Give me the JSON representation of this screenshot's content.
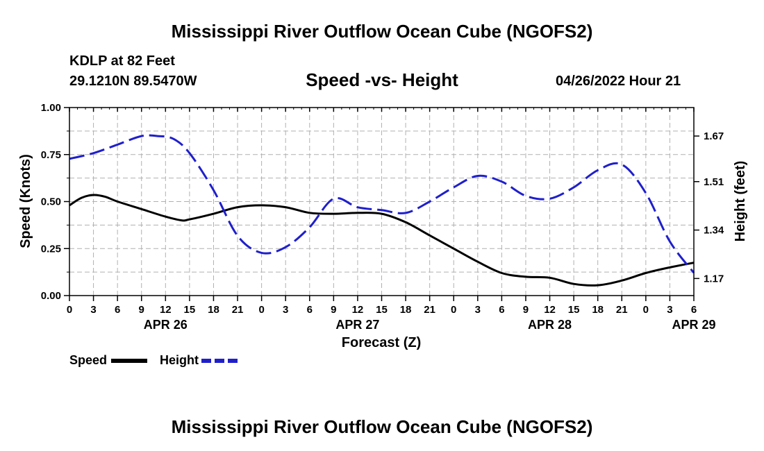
{
  "header": {
    "title": "Mississippi River Outflow Ocean Cube (NGOFS2)",
    "station": "KDLP at 82 Feet",
    "coordinates": "29.1210N  89.5470W",
    "subtitle": "Speed -vs- Height",
    "datetime": "04/26/2022 Hour 21"
  },
  "footer": {
    "title": "Mississippi River Outflow Ocean Cube (NGOFS2)"
  },
  "chart_data": {
    "type": "line",
    "title": "Speed -vs- Height",
    "xlabel": "Forecast (Z)",
    "ylabel": "Speed (Knots)",
    "y2label": "Height (feet)",
    "xlim_hours": [
      0,
      78
    ],
    "ylim": [
      0,
      1
    ],
    "y2lim": [
      1.11,
      1.77
    ],
    "grid": true,
    "x_tick_labels": [
      "0",
      "3",
      "6",
      "9",
      "12",
      "15",
      "18",
      "21",
      "0",
      "3",
      "6",
      "9",
      "12",
      "15",
      "18",
      "21",
      "0",
      "3",
      "6",
      "9",
      "12",
      "15",
      "18",
      "21",
      "0",
      "3",
      "6"
    ],
    "date_labels": [
      {
        "label": "APR 26",
        "hour": 12
      },
      {
        "label": "APR 27",
        "hour": 36
      },
      {
        "label": "APR 28",
        "hour": 60
      },
      {
        "label": "APR 29",
        "hour": 78
      }
    ],
    "y_ticks": [
      {
        "value": 0,
        "label": "0.00"
      },
      {
        "value": 0.25,
        "label": "0.25"
      },
      {
        "value": 0.5,
        "label": "0.50"
      },
      {
        "value": 0.75,
        "label": "0.75"
      },
      {
        "value": 1,
        "label": "1.00"
      }
    ],
    "y2_ticks": [
      {
        "value": 1.17,
        "label": "1.17"
      },
      {
        "value": 1.34,
        "label": "1.34"
      },
      {
        "value": 1.51,
        "label": "1.51"
      },
      {
        "value": 1.67,
        "label": "1.67"
      }
    ],
    "series": [
      {
        "name": "Speed",
        "axis": "left",
        "color": "#000000",
        "dash": "solid",
        "x": [
          0,
          1.5,
          3,
          4.5,
          6,
          9,
          12,
          14,
          15,
          18,
          21,
          24,
          27,
          30,
          33,
          36,
          39,
          42,
          45,
          48,
          51,
          54,
          57,
          60,
          63,
          66,
          69,
          72,
          75,
          78
        ],
        "y": [
          0.48,
          0.52,
          0.535,
          0.525,
          0.5,
          0.46,
          0.42,
          0.4,
          0.405,
          0.435,
          0.47,
          0.48,
          0.47,
          0.44,
          0.435,
          0.44,
          0.435,
          0.39,
          0.32,
          0.25,
          0.18,
          0.12,
          0.1,
          0.095,
          0.062,
          0.055,
          0.08,
          0.12,
          0.15,
          0.175
        ]
      },
      {
        "name": "Height",
        "axis": "right",
        "color": "#1f1fcc",
        "dash": "dashed",
        "x": [
          0,
          3,
          6,
          9,
          11,
          13,
          15,
          18,
          21,
          24,
          27,
          30,
          33,
          36,
          39,
          42,
          45,
          48,
          51,
          54,
          57,
          60,
          63,
          66,
          69,
          72,
          75,
          78
        ],
        "y": [
          1.59,
          1.61,
          1.64,
          1.67,
          1.67,
          1.66,
          1.61,
          1.48,
          1.32,
          1.26,
          1.28,
          1.35,
          1.45,
          1.42,
          1.41,
          1.4,
          1.44,
          1.49,
          1.53,
          1.51,
          1.46,
          1.45,
          1.49,
          1.55,
          1.57,
          1.47,
          1.3,
          1.19
        ]
      }
    ]
  }
}
